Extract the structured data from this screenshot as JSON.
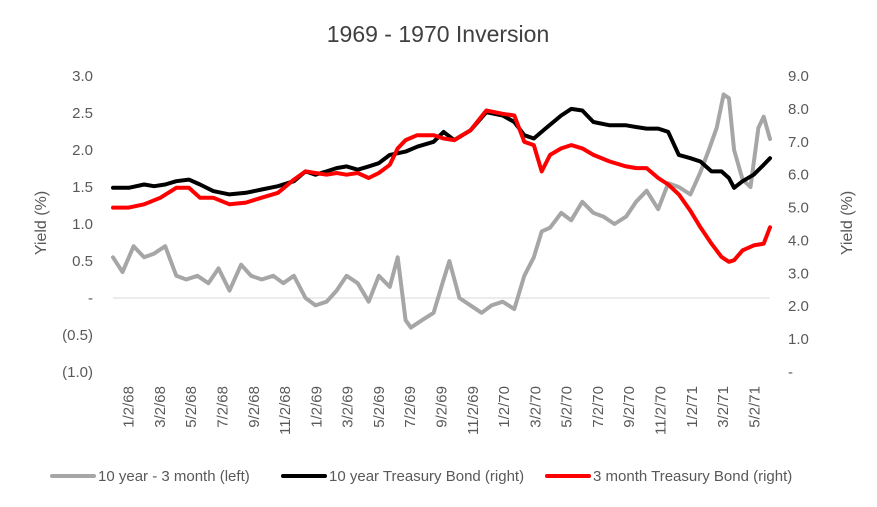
{
  "chart_data": {
    "type": "line",
    "title": "1969 - 1970 Inversion",
    "ylabel_left": "Yield (%)",
    "ylabel_right": "Yield (%)",
    "ylim_left": [
      -1.0,
      3.0
    ],
    "ylim_right": [
      0.0,
      9.0
    ],
    "y_ticks_left": [
      "3.0",
      "2.5",
      "2.0",
      "1.5",
      "1.0",
      "0.5",
      "-",
      "(0.5)",
      "(1.0)"
    ],
    "y_ticks_right": [
      "9.0",
      "8.0",
      "7.0",
      "6.0",
      "5.0",
      "4.0",
      "3.0",
      "2.0",
      "1.0",
      "-"
    ],
    "x_tick_labels": [
      "1/2/68",
      "3/2/68",
      "5/2/68",
      "7/2/68",
      "9/2/68",
      "11/2/68",
      "1/2/69",
      "3/2/69",
      "5/2/69",
      "7/2/69",
      "9/2/69",
      "11/2/69",
      "1/2/70",
      "3/2/70",
      "5/2/70",
      "7/2/70",
      "9/2/70",
      "11/2/70",
      "1/2/71",
      "3/2/71",
      "5/2/71"
    ],
    "x_range": [
      "1968-01-02",
      "1971-06-01"
    ],
    "grid": false,
    "legend_position": "bottom",
    "series": [
      {
        "name": "10 year - 3 month (left)",
        "axis": "left",
        "color": "#a6a6a6",
        "points": [
          [
            "1968-01-02",
            0.55
          ],
          [
            "1968-01-20",
            0.35
          ],
          [
            "1968-02-10",
            0.7
          ],
          [
            "1968-03-01",
            0.55
          ],
          [
            "1968-03-20",
            0.6
          ],
          [
            "1968-04-10",
            0.7
          ],
          [
            "1968-05-01",
            0.3
          ],
          [
            "1968-05-20",
            0.25
          ],
          [
            "1968-06-10",
            0.3
          ],
          [
            "1968-07-01",
            0.2
          ],
          [
            "1968-07-20",
            0.4
          ],
          [
            "1968-08-10",
            0.1
          ],
          [
            "1968-09-01",
            0.45
          ],
          [
            "1968-09-20",
            0.3
          ],
          [
            "1968-10-10",
            0.25
          ],
          [
            "1968-11-01",
            0.3
          ],
          [
            "1968-11-20",
            0.2
          ],
          [
            "1968-12-10",
            0.3
          ],
          [
            "1969-01-01",
            0.0
          ],
          [
            "1969-01-20",
            -0.1
          ],
          [
            "1969-02-10",
            -0.05
          ],
          [
            "1969-03-01",
            0.1
          ],
          [
            "1969-03-20",
            0.3
          ],
          [
            "1969-04-10",
            0.2
          ],
          [
            "1969-05-01",
            -0.05
          ],
          [
            "1969-05-20",
            0.3
          ],
          [
            "1969-06-10",
            0.15
          ],
          [
            "1969-06-25",
            0.55
          ],
          [
            "1969-07-10",
            -0.3
          ],
          [
            "1969-07-20",
            -0.4
          ],
          [
            "1969-08-10",
            -0.3
          ],
          [
            "1969-09-01",
            -0.2
          ],
          [
            "1969-09-20",
            0.25
          ],
          [
            "1969-10-01",
            0.5
          ],
          [
            "1969-10-20",
            0.0
          ],
          [
            "1969-11-10",
            -0.1
          ],
          [
            "1969-12-01",
            -0.2
          ],
          [
            "1969-12-20",
            -0.1
          ],
          [
            "1970-01-10",
            -0.05
          ],
          [
            "1970-02-01",
            -0.15
          ],
          [
            "1970-02-20",
            0.3
          ],
          [
            "1970-03-10",
            0.55
          ],
          [
            "1970-03-25",
            0.9
          ],
          [
            "1970-04-10",
            0.95
          ],
          [
            "1970-05-01",
            1.15
          ],
          [
            "1970-05-20",
            1.05
          ],
          [
            "1970-06-10",
            1.3
          ],
          [
            "1970-07-01",
            1.15
          ],
          [
            "1970-07-20",
            1.1
          ],
          [
            "1970-08-10",
            1.0
          ],
          [
            "1970-09-01",
            1.1
          ],
          [
            "1970-09-20",
            1.3
          ],
          [
            "1970-10-10",
            1.45
          ],
          [
            "1970-11-01",
            1.2
          ],
          [
            "1970-11-20",
            1.55
          ],
          [
            "1970-12-10",
            1.5
          ],
          [
            "1971-01-01",
            1.4
          ],
          [
            "1971-01-20",
            1.7
          ],
          [
            "1971-02-05",
            2.0
          ],
          [
            "1971-02-20",
            2.3
          ],
          [
            "1971-03-05",
            2.75
          ],
          [
            "1971-03-15",
            2.7
          ],
          [
            "1971-03-25",
            2.0
          ],
          [
            "1971-04-10",
            1.6
          ],
          [
            "1971-04-25",
            1.5
          ],
          [
            "1971-05-10",
            2.3
          ],
          [
            "1971-05-20",
            2.45
          ],
          [
            "1971-06-01",
            2.15
          ]
        ]
      },
      {
        "name": "10 year Treasury Bond (right)",
        "axis": "right",
        "color": "#000000",
        "points": [
          [
            "1968-01-02",
            5.6
          ],
          [
            "1968-02-01",
            5.6
          ],
          [
            "1968-03-01",
            5.7
          ],
          [
            "1968-03-20",
            5.65
          ],
          [
            "1968-04-10",
            5.7
          ],
          [
            "1968-05-01",
            5.8
          ],
          [
            "1968-05-25",
            5.85
          ],
          [
            "1968-06-15",
            5.7
          ],
          [
            "1968-07-10",
            5.5
          ],
          [
            "1968-08-10",
            5.4
          ],
          [
            "1968-09-10",
            5.45
          ],
          [
            "1968-10-10",
            5.55
          ],
          [
            "1968-11-10",
            5.65
          ],
          [
            "1968-12-10",
            5.8
          ],
          [
            "1969-01-01",
            6.1
          ],
          [
            "1969-01-20",
            6.0
          ],
          [
            "1969-02-10",
            6.1
          ],
          [
            "1969-03-01",
            6.2
          ],
          [
            "1969-03-20",
            6.25
          ],
          [
            "1969-04-10",
            6.15
          ],
          [
            "1969-05-01",
            6.25
          ],
          [
            "1969-05-20",
            6.35
          ],
          [
            "1969-06-10",
            6.6
          ],
          [
            "1969-07-10",
            6.7
          ],
          [
            "1969-08-01",
            6.85
          ],
          [
            "1969-09-01",
            7.0
          ],
          [
            "1969-09-20",
            7.3
          ],
          [
            "1969-10-10",
            7.05
          ],
          [
            "1969-11-10",
            7.35
          ],
          [
            "1969-12-10",
            7.9
          ],
          [
            "1970-01-10",
            7.8
          ],
          [
            "1970-02-01",
            7.6
          ],
          [
            "1970-02-20",
            7.2
          ],
          [
            "1970-03-10",
            7.1
          ],
          [
            "1970-04-01",
            7.4
          ],
          [
            "1970-05-01",
            7.8
          ],
          [
            "1970-05-20",
            8.0
          ],
          [
            "1970-06-10",
            7.95
          ],
          [
            "1970-07-01",
            7.6
          ],
          [
            "1970-08-01",
            7.5
          ],
          [
            "1970-09-01",
            7.5
          ],
          [
            "1970-09-20",
            7.45
          ],
          [
            "1970-10-10",
            7.4
          ],
          [
            "1970-11-01",
            7.4
          ],
          [
            "1970-11-20",
            7.3
          ],
          [
            "1970-12-10",
            6.6
          ],
          [
            "1971-01-01",
            6.5
          ],
          [
            "1971-01-20",
            6.4
          ],
          [
            "1971-02-10",
            6.1
          ],
          [
            "1971-03-01",
            6.1
          ],
          [
            "1971-03-15",
            5.9
          ],
          [
            "1971-03-25",
            5.6
          ],
          [
            "1971-04-10",
            5.8
          ],
          [
            "1971-05-01",
            6.0
          ],
          [
            "1971-05-20",
            6.3
          ],
          [
            "1971-06-01",
            6.5
          ]
        ]
      },
      {
        "name": "3 month Treasury Bond (right)",
        "axis": "right",
        "color": "#ff0000",
        "points": [
          [
            "1968-01-02",
            5.0
          ],
          [
            "1968-02-01",
            5.0
          ],
          [
            "1968-03-01",
            5.1
          ],
          [
            "1968-04-01",
            5.3
          ],
          [
            "1968-05-01",
            5.6
          ],
          [
            "1968-05-25",
            5.6
          ],
          [
            "1968-06-15",
            5.3
          ],
          [
            "1968-07-10",
            5.3
          ],
          [
            "1968-08-10",
            5.1
          ],
          [
            "1968-09-10",
            5.15
          ],
          [
            "1968-10-10",
            5.3
          ],
          [
            "1968-11-10",
            5.45
          ],
          [
            "1968-12-10",
            5.85
          ],
          [
            "1969-01-01",
            6.1
          ],
          [
            "1969-01-20",
            6.05
          ],
          [
            "1969-02-10",
            6.0
          ],
          [
            "1969-03-01",
            6.05
          ],
          [
            "1969-03-20",
            6.0
          ],
          [
            "1969-04-10",
            6.05
          ],
          [
            "1969-05-01",
            5.9
          ],
          [
            "1969-05-20",
            6.05
          ],
          [
            "1969-06-10",
            6.3
          ],
          [
            "1969-06-25",
            6.8
          ],
          [
            "1969-07-10",
            7.05
          ],
          [
            "1969-08-01",
            7.2
          ],
          [
            "1969-09-01",
            7.2
          ],
          [
            "1969-09-20",
            7.1
          ],
          [
            "1969-10-10",
            7.05
          ],
          [
            "1969-11-10",
            7.35
          ],
          [
            "1969-12-10",
            7.95
          ],
          [
            "1970-01-10",
            7.85
          ],
          [
            "1970-02-01",
            7.8
          ],
          [
            "1970-02-20",
            7.0
          ],
          [
            "1970-03-10",
            6.9
          ],
          [
            "1970-03-25",
            6.1
          ],
          [
            "1970-04-10",
            6.6
          ],
          [
            "1970-05-01",
            6.8
          ],
          [
            "1970-05-20",
            6.9
          ],
          [
            "1970-06-10",
            6.8
          ],
          [
            "1970-07-01",
            6.6
          ],
          [
            "1970-08-01",
            6.4
          ],
          [
            "1970-09-01",
            6.25
          ],
          [
            "1970-09-20",
            6.2
          ],
          [
            "1970-10-10",
            6.2
          ],
          [
            "1970-11-01",
            5.9
          ],
          [
            "1970-11-20",
            5.7
          ],
          [
            "1970-12-10",
            5.4
          ],
          [
            "1971-01-01",
            4.9
          ],
          [
            "1971-01-20",
            4.4
          ],
          [
            "1971-02-10",
            3.9
          ],
          [
            "1971-03-01",
            3.5
          ],
          [
            "1971-03-15",
            3.35
          ],
          [
            "1971-03-25",
            3.4
          ],
          [
            "1971-04-10",
            3.7
          ],
          [
            "1971-05-01",
            3.85
          ],
          [
            "1971-05-20",
            3.9
          ],
          [
            "1971-06-01",
            4.4
          ]
        ]
      }
    ]
  }
}
